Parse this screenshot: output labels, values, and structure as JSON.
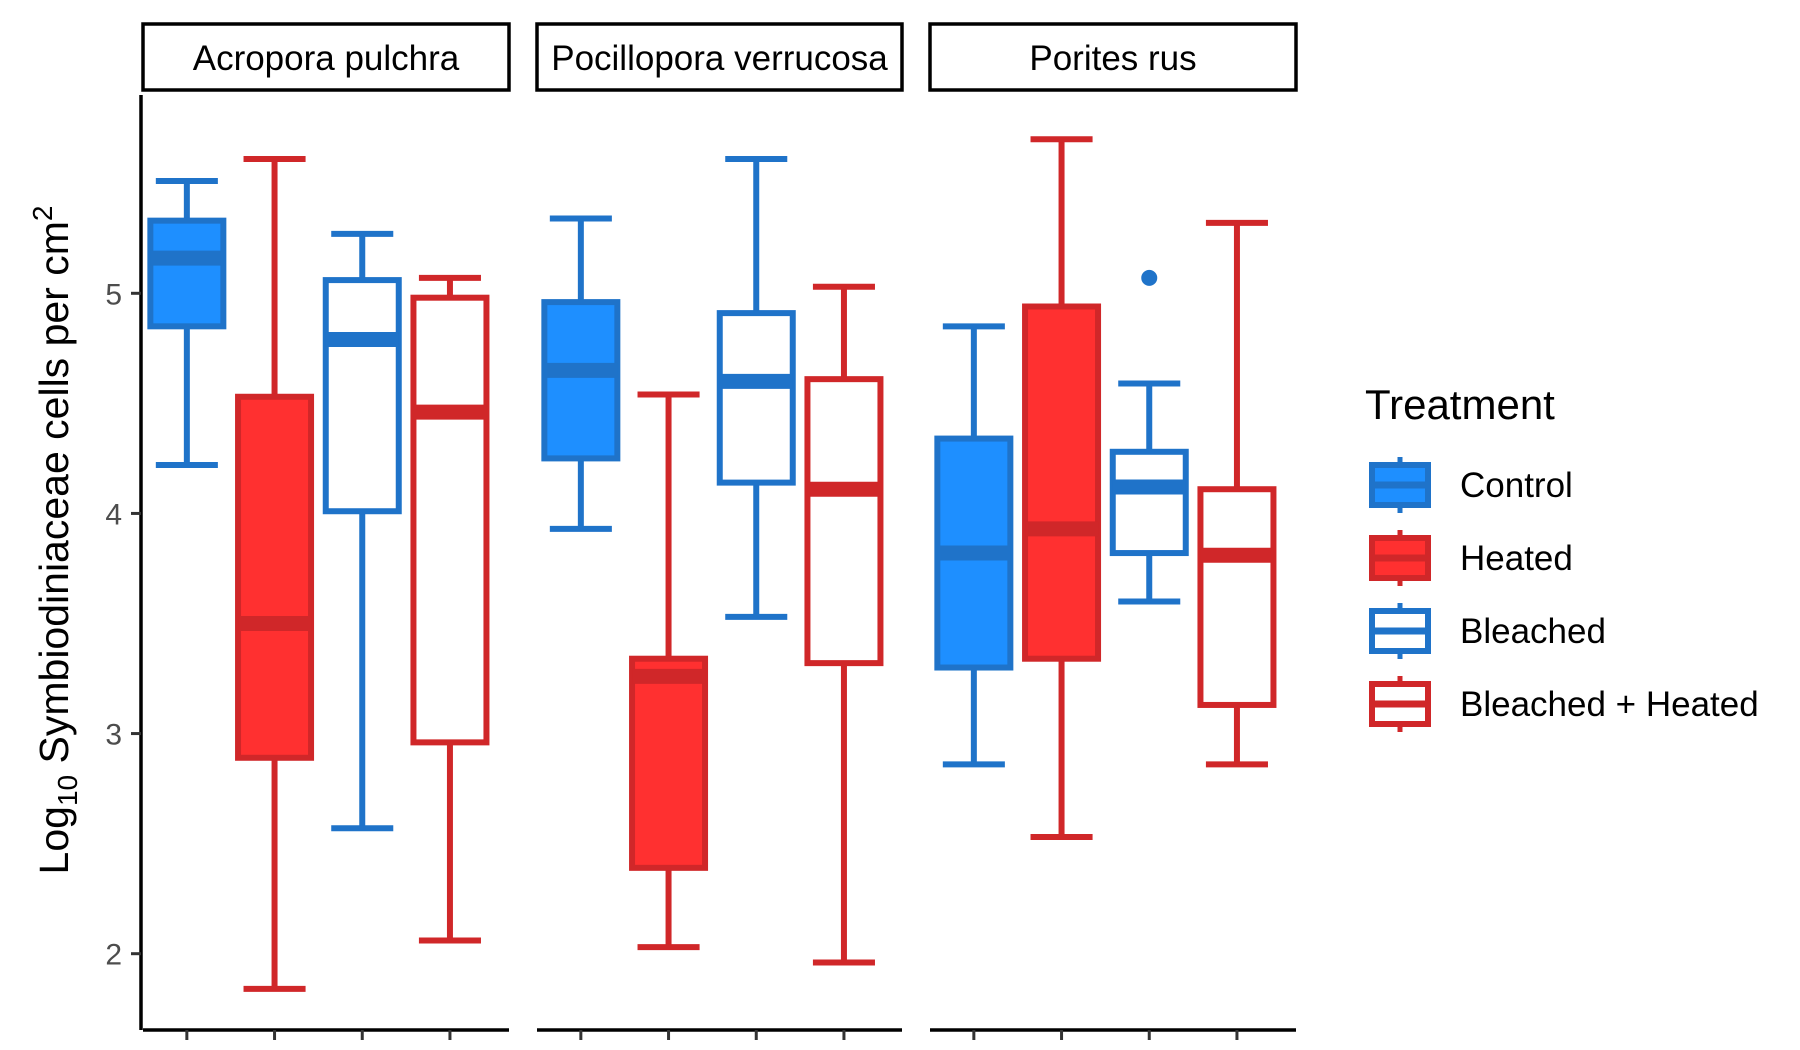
{
  "chart_data": {
    "type": "boxplot",
    "ylabel": {
      "base": "Log",
      "subscript": "10",
      "main": " Symbiodiniaceae cells per cm",
      "superscript": "2"
    },
    "yticks": [
      2,
      3,
      4,
      5
    ],
    "ylim": [
      1.65,
      5.95
    ],
    "legend": {
      "title": "Treatment",
      "placement": "right",
      "entries": [
        {
          "label": "Control",
          "stroke": "#1f73c9",
          "fill": "#1e8fff"
        },
        {
          "label": "Heated",
          "stroke": "#d02729",
          "fill": "#ff3030"
        },
        {
          "label": "Bleached",
          "stroke": "#1f73c9",
          "fill": "#ffffff"
        },
        {
          "label": "Bleached + Heated",
          "stroke": "#d02729",
          "fill": "#ffffff"
        }
      ]
    },
    "facets": [
      {
        "title": "Acropora pulchra",
        "boxes": [
          {
            "treatment": "Control",
            "min": 4.22,
            "q1": 4.85,
            "median": 5.16,
            "q3": 5.33,
            "max": 5.51,
            "outliers": []
          },
          {
            "treatment": "Heated",
            "min": 1.84,
            "q1": 2.89,
            "median": 3.5,
            "q3": 4.53,
            "max": 5.61,
            "outliers": []
          },
          {
            "treatment": "Bleached",
            "min": 2.57,
            "q1": 4.01,
            "median": 4.79,
            "q3": 5.06,
            "max": 5.27,
            "outliers": []
          },
          {
            "treatment": "Bleached + Heated",
            "min": 2.06,
            "q1": 2.96,
            "median": 4.46,
            "q3": 4.98,
            "max": 5.07,
            "outliers": []
          }
        ]
      },
      {
        "title": "Pocillopora verrucosa",
        "boxes": [
          {
            "treatment": "Control",
            "min": 3.93,
            "q1": 4.25,
            "median": 4.65,
            "q3": 4.96,
            "max": 5.34,
            "outliers": []
          },
          {
            "treatment": "Heated",
            "min": 2.03,
            "q1": 2.39,
            "median": 3.26,
            "q3": 3.34,
            "max": 4.54,
            "outliers": []
          },
          {
            "treatment": "Bleached",
            "min": 3.53,
            "q1": 4.14,
            "median": 4.6,
            "q3": 4.91,
            "max": 5.61,
            "outliers": []
          },
          {
            "treatment": "Bleached + Heated",
            "min": 1.96,
            "q1": 3.32,
            "median": 4.11,
            "q3": 4.61,
            "max": 5.03,
            "outliers": []
          }
        ]
      },
      {
        "title": "Porites rus",
        "boxes": [
          {
            "treatment": "Control",
            "min": 2.86,
            "q1": 3.3,
            "median": 3.82,
            "q3": 4.34,
            "max": 4.85,
            "outliers": []
          },
          {
            "treatment": "Heated",
            "min": 2.53,
            "q1": 3.34,
            "median": 3.93,
            "q3": 4.94,
            "max": 5.7,
            "outliers": []
          },
          {
            "treatment": "Bleached",
            "min": 3.6,
            "q1": 3.82,
            "median": 4.12,
            "q3": 4.28,
            "max": 4.59,
            "outliers": [
              5.07
            ]
          },
          {
            "treatment": "Bleached + Heated",
            "min": 2.86,
            "q1": 3.13,
            "median": 3.81,
            "q3": 4.11,
            "max": 5.32,
            "outliers": []
          }
        ]
      }
    ]
  }
}
